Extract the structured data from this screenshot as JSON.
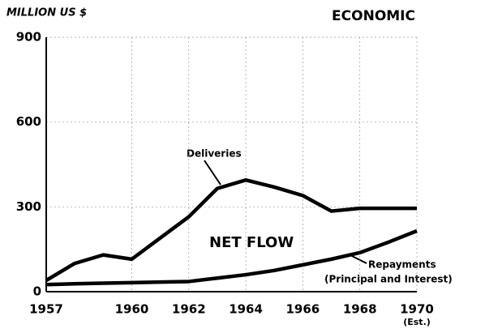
{
  "chart_data": {
    "type": "line",
    "title": "ECONOMIC",
    "y_label": "MILLION US $",
    "x": [
      1957,
      1958,
      1959,
      1960,
      1961,
      1962,
      1963,
      1964,
      1965,
      1966,
      1967,
      1968,
      1969,
      1970
    ],
    "series": [
      {
        "name": "Deliveries",
        "color": "#000000",
        "values": [
          40,
          100,
          130,
          115,
          190,
          265,
          365,
          395,
          370,
          340,
          285,
          295,
          295,
          295
        ]
      },
      {
        "name": "Repayments",
        "color": "#000000",
        "values": [
          25,
          28,
          30,
          32,
          34,
          36,
          48,
          60,
          75,
          95,
          115,
          138,
          175,
          215
        ]
      }
    ],
    "annotations": [
      "NET FLOW",
      "(Principal and Interest)",
      "(Est.)"
    ],
    "xlim": [
      1957,
      1970
    ],
    "xticks": [
      1957,
      1960,
      1962,
      1964,
      1966,
      1968,
      1970
    ],
    "ylim": [
      0,
      900
    ],
    "yticks": [
      0,
      300,
      600,
      900
    ],
    "grid": true
  }
}
